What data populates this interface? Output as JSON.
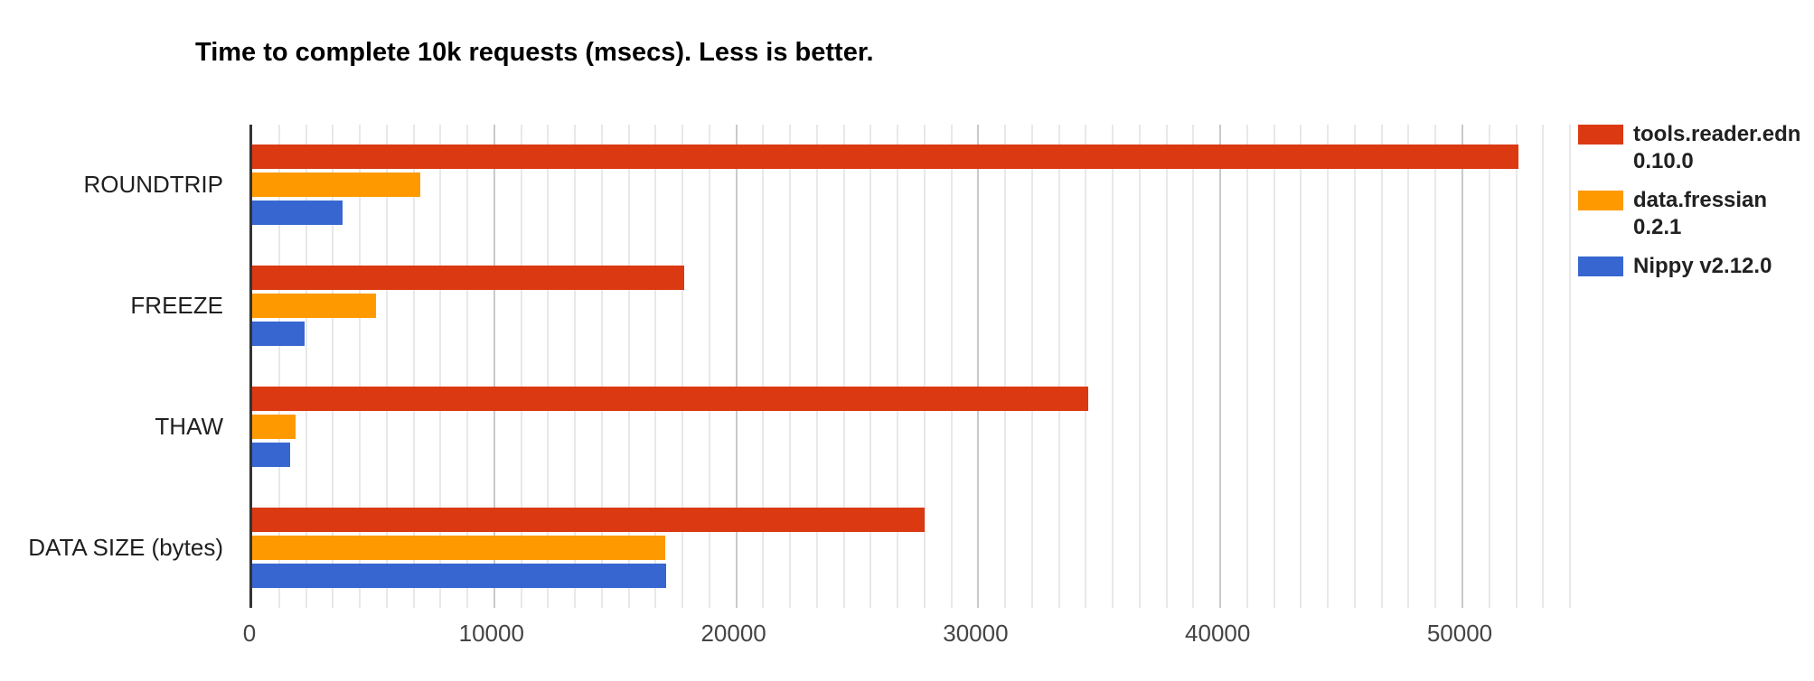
{
  "chart_data": {
    "type": "bar",
    "orientation": "horizontal",
    "title": "Time to complete 10k requests (msecs). Less is better.",
    "categories": [
      "ROUNDTRIP",
      "FREEZE",
      "THAW",
      "DATA SIZE (bytes)"
    ],
    "series": [
      {
        "name": "tools.reader.edn 0.10.0",
        "legend_lines": [
          "tools.reader.edn",
          "0.10.0"
        ],
        "color": "#DB3912",
        "values": [
          52300,
          17850,
          34550,
          27800
        ]
      },
      {
        "name": "data.fressian 0.2.1",
        "legend_lines": [
          "data.fressian",
          "0.2.1"
        ],
        "color": "#FE9900",
        "values": [
          6950,
          5100,
          1800,
          17080
        ]
      },
      {
        "name": "Nippy v2.12.0",
        "legend_lines": [
          "Nippy v2.12.0"
        ],
        "color": "#3766D1",
        "values": [
          3750,
          2150,
          1580,
          17120
        ]
      }
    ],
    "xaxis": {
      "label": "",
      "max": 54444,
      "major_step": 10000,
      "minor_divisions_per_major": 9,
      "ticks": [
        0,
        10000,
        20000,
        30000,
        40000,
        50000
      ],
      "tick_labels": [
        "0",
        "10000",
        "20000",
        "30000",
        "40000",
        "50000"
      ]
    },
    "legend_position": "right",
    "grid": true,
    "colors": {
      "background": "#FFFFFF",
      "axis_line": "#333333",
      "minor_gridline": "#E8E8E8",
      "major_gridline": "#C9C9C9",
      "title_text": "#000000",
      "category_text": "#1F1F1F",
      "tick_text": "#444444",
      "legend_text": "#212121"
    }
  }
}
